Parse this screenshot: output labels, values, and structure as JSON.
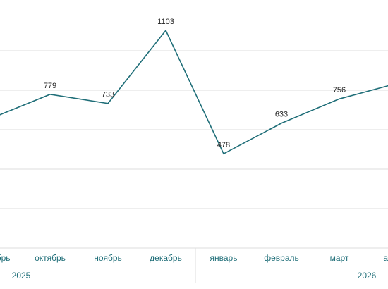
{
  "chart_data": {
    "type": "line",
    "categories": [
      "сентябрь",
      "октябрь",
      "ноябрь",
      "декабрь",
      "январь",
      "февраль",
      "март",
      "апрель"
    ],
    "values": [
      660,
      779,
      733,
      1103,
      478,
      633,
      756,
      835
    ],
    "color": "#1f6e78",
    "years": [
      "2025",
      "2026"
    ],
    "ylim": [
      0,
      1200
    ],
    "yticks": [
      0,
      200,
      400,
      600,
      800,
      1000
    ],
    "grid": true
  }
}
